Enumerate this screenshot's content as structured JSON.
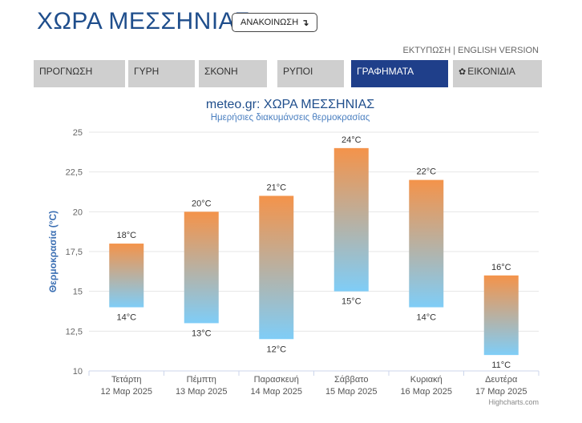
{
  "header": {
    "title": "ΧΩΡΑ ΜΕΣΣΗΝΙΑΣ",
    "announce_label": "ΑΝΑΚΟΙΝΩΣΗ",
    "announce_icon": "arrow-down-right-icon",
    "print_label": "ΕΚΤΥΠΩΣΗ",
    "separator": " | ",
    "english_label": "ENGLISH VERSION"
  },
  "tabs": [
    {
      "label": "ΠΡΟΓΝΩΣΗ",
      "active": false
    },
    {
      "label": "ΓΥΡΗ",
      "active": false
    },
    {
      "label": "ΣΚΟΝΗ",
      "active": false
    },
    {
      "label": "ΡΥΠΟΙ",
      "active": false
    },
    {
      "label": "ΓΡΑΦΗΜΑΤΑ",
      "active": true
    },
    {
      "label": "ΕΙΚΟΝΙΔΙΑ",
      "active": false,
      "icon": "gear-icon"
    }
  ],
  "chart_data": {
    "type": "columnrange",
    "title": "meteo.gr: ΧΩΡΑ ΜΕΣΣΗΝΙΑΣ",
    "subtitle": "Ημερήσιες διακυμάνσεις θερμοκρασίας",
    "ylabel": "Θερμοκρασία (°C)",
    "ylim": [
      10,
      25
    ],
    "yticks": [
      "10",
      "12,5",
      "15",
      "17,5",
      "20",
      "22,5",
      "25"
    ],
    "grid": true,
    "unit": "°C",
    "categories": [
      {
        "day": "Τετάρτη",
        "date": "12 Μαρ 2025"
      },
      {
        "day": "Πέμπτη",
        "date": "13 Μαρ 2025"
      },
      {
        "day": "Παρασκευή",
        "date": "14 Μαρ 2025"
      },
      {
        "day": "Σάββατο",
        "date": "15 Μαρ 2025"
      },
      {
        "day": "Κυριακή",
        "date": "16 Μαρ 2025"
      },
      {
        "day": "Δευτέρα",
        "date": "17 Μαρ 2025"
      }
    ],
    "low": [
      14,
      13,
      12,
      15,
      14,
      11
    ],
    "high": [
      18,
      20,
      21,
      24,
      22,
      16
    ],
    "low_labels": [
      "14°C",
      "13°C",
      "12°C",
      "15°C",
      "14°C",
      "11°C"
    ],
    "high_labels": [
      "18°C",
      "20°C",
      "21°C",
      "24°C",
      "22°C",
      "16°C"
    ],
    "colors": {
      "top": "#f4934a",
      "bottom": "#7fcdf7",
      "title": "#1f4e8c",
      "subtitle": "#4a7fc0",
      "ylabel": "#3b6fb3"
    },
    "credits": "Highcharts.com"
  }
}
